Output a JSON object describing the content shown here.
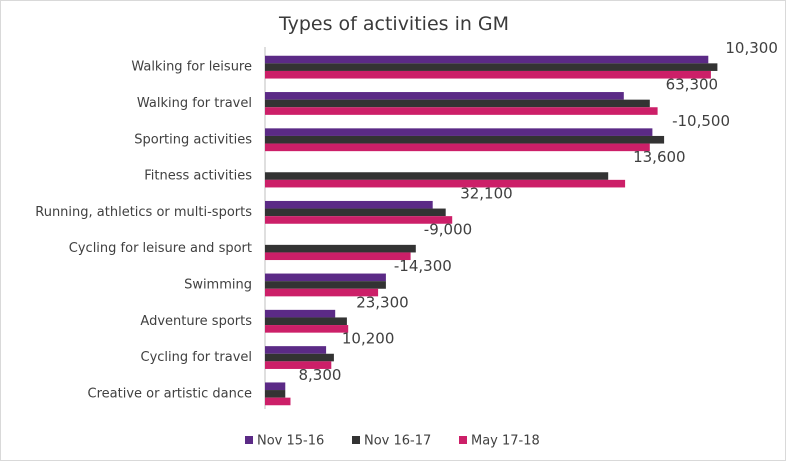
{
  "chart_data": {
    "type": "bar",
    "orientation": "horizontal",
    "title": "Types of activities in GM",
    "categories": [
      "Walking for leisure",
      "Walking for travel",
      "Sporting activities",
      "Fitness activities",
      "Running, athletics or multi-sports",
      "Cycling for leisure and sport",
      "Swimming",
      "Adventure sports",
      "Cycling for travel",
      "Creative or artistic dance"
    ],
    "series": [
      {
        "name": "Nov 15-16",
        "color": "#5b2a86",
        "values": [
          1705000,
          1380000,
          1490000,
          null,
          645000,
          null,
          465000,
          270000,
          235000,
          78000
        ]
      },
      {
        "name": "Nov 16-17",
        "color": "#333333",
        "values": [
          1740000,
          1480000,
          1535000,
          1320000,
          695000,
          580000,
          465000,
          315000,
          265000,
          78000
        ]
      },
      {
        "name": "May 17-18",
        "color": "#cc1f68",
        "values": [
          1715000,
          1510000,
          1480000,
          1385000,
          720000,
          560000,
          435000,
          320000,
          255000,
          98000
        ]
      }
    ],
    "data_labels": [
      "10,300",
      "63,300",
      "-10,500",
      "13,600",
      "32,100",
      "-9,000",
      "-14,300",
      "23,300",
      "10,200",
      "8,300"
    ],
    "xlim": [
      0,
      2000000
    ],
    "grid": false,
    "legend_position": "bottom"
  }
}
